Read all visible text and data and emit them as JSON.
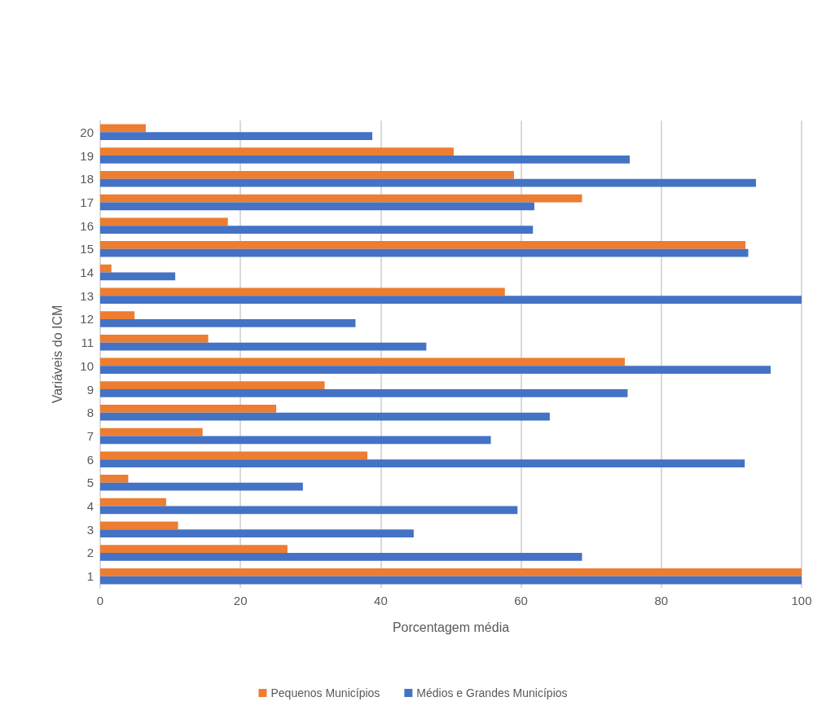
{
  "chart_data": {
    "type": "bar",
    "orientation": "horizontal",
    "xlabel": "Porcentagem média",
    "ylabel": "Variáveis do ICM",
    "categories": [
      "20",
      "19",
      "18",
      "17",
      "16",
      "15",
      "14",
      "13",
      "12",
      "11",
      "10",
      "9",
      "8",
      "7",
      "6",
      "5",
      "4",
      "3",
      "2",
      "1"
    ],
    "series": [
      {
        "name": "Pequenos Municípios",
        "color": "#ed7d31",
        "values": [
          6.5,
          50.4,
          59,
          68.7,
          18.2,
          92,
          1.6,
          57.7,
          4.9,
          15.4,
          74.8,
          32,
          25.1,
          14.6,
          38.1,
          4,
          9.4,
          11.1,
          26.7,
          100
        ]
      },
      {
        "name": "Médios e Grandes Municípios",
        "color": "#4472c4",
        "values": [
          38.8,
          75.5,
          93.5,
          61.9,
          61.7,
          92.4,
          10.7,
          100,
          36.4,
          46.5,
          95.6,
          75.2,
          64.1,
          55.7,
          91.9,
          28.9,
          59.5,
          44.7,
          68.7,
          100
        ]
      }
    ],
    "xlim": [
      0,
      100
    ],
    "xticks": [
      0,
      20,
      40,
      60,
      80,
      100
    ],
    "grid": "x",
    "legend": "bottom"
  }
}
